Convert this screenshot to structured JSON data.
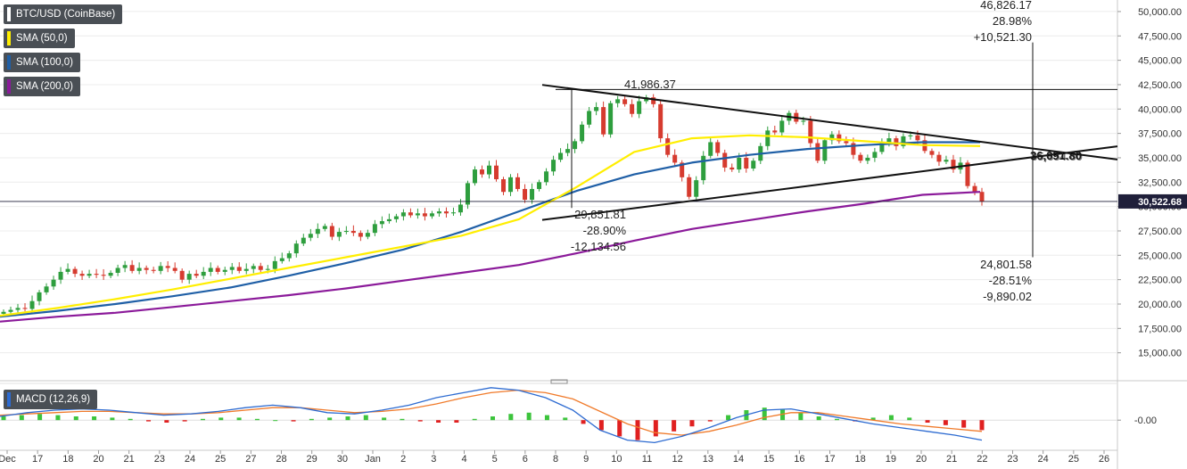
{
  "legend": {
    "instrument": "BTC/USD (CoinBase)",
    "sma50": "SMA (50,0)",
    "sma100": "SMA (100,0)",
    "sma200": "SMA (200,0)",
    "macd": "MACD (12,26,9)"
  },
  "colors": {
    "sma50": "#ffee00",
    "sma100": "#1f5fa6",
    "sma200": "#8b1a9a",
    "up": "#2e9e3e",
    "down": "#d63b2f",
    "macd_line": "#2d6bd1",
    "signal_line": "#f07a2a",
    "hist_up": "#3cc43c",
    "hist_down": "#e02020",
    "price_box": "#1f1f3a",
    "legend_bg": "#4a4f55"
  },
  "annotations": {
    "peak_label": "41,986.37",
    "low_label": [
      "29,851.81",
      "-28.90%",
      "-12,134.56"
    ],
    "upper_range": [
      "46,826.17",
      "28.98%",
      "+10,521.30"
    ],
    "lower_range": [
      "24,801.58",
      "-28.51%",
      "-9,890.02"
    ],
    "apex_label": "36,091.80",
    "apex_label_overlap": "35,654.80"
  },
  "chart_data": {
    "type": "candlestick",
    "title": "BTC/USD (CoinBase)",
    "xlabel": "",
    "ylabel": "",
    "ylim": [
      12500,
      51000
    ],
    "y_ticks": [
      "50,000.00",
      "47,500.00",
      "45,000.00",
      "42,500.00",
      "40,000.00",
      "37,500.00",
      "35,000.00",
      "32,500.00",
      "30,000.00",
      "27,500.00",
      "25,000.00",
      "22,500.00",
      "20,000.00",
      "17,500.00",
      "15,000.00"
    ],
    "x_ticks": [
      "Dec",
      "17",
      "18",
      "20",
      "21",
      "23",
      "24",
      "25",
      "27",
      "28",
      "29",
      "30",
      "Jan",
      "2",
      "3",
      "4",
      "5",
      "6",
      "8",
      "9",
      "10",
      "11",
      "12",
      "13",
      "14",
      "15",
      "16",
      "17",
      "18",
      "19",
      "20",
      "21",
      "22",
      "23",
      "24",
      "25",
      "26"
    ],
    "last_price": "30,522.68",
    "candles_close_path": [
      19200,
      19400,
      19600,
      19500,
      20300,
      21200,
      21800,
      22500,
      23300,
      23600,
      23100,
      22900,
      23100,
      23000,
      22900,
      23200,
      23700,
      24000,
      23400,
      23700,
      23500,
      23400,
      23900,
      23700,
      23400,
      22500,
      23100,
      22900,
      23300,
      23700,
      23300,
      23500,
      23800,
      23400,
      23600,
      23900,
      23500,
      23600,
      24400,
      24700,
      25200,
      26200,
      26800,
      27200,
      27700,
      28000,
      26900,
      27400,
      27500,
      27300,
      26900,
      27300,
      28200,
      28500,
      28700,
      29000,
      29400,
      29100,
      29300,
      29000,
      29300,
      29500,
      29300,
      29400,
      30200,
      32400,
      33800,
      33300,
      34200,
      32800,
      31500,
      33000,
      31800,
      30700,
      31800,
      32500,
      33600,
      34800,
      35500,
      35900,
      36700,
      38400,
      39800,
      40200,
      37400,
      40600,
      41000,
      40500,
      39500,
      40800,
      41200,
      40500,
      37000,
      35300,
      34500,
      33000,
      31000,
      32700,
      35200,
      36600,
      35500,
      34000,
      33800,
      35000,
      33900,
      34700,
      36200,
      37800,
      37600,
      38800,
      39600,
      38700,
      38800,
      36500,
      34700,
      36800,
      37400,
      36700,
      36500,
      35300,
      34700,
      35000,
      35600,
      36500,
      37000,
      36200,
      37200,
      37300,
      36800,
      35700,
      35300,
      34600,
      34800,
      33800,
      34500,
      32100,
      31500,
      30523
    ],
    "sma50": [
      18800,
      19600,
      20500,
      21500,
      22600,
      23700,
      24800,
      25900,
      27000,
      28700,
      32000,
      35600,
      37000,
      37300,
      37100,
      36700,
      36300,
      36200
    ],
    "sma100": [
      18700,
      19300,
      20000,
      20800,
      21700,
      22900,
      24200,
      25600,
      27400,
      29500,
      31600,
      33300,
      34500,
      35300,
      35900,
      36300,
      36600,
      36600
    ],
    "sma200": [
      18200,
      18700,
      19100,
      19700,
      20300,
      20900,
      21600,
      22400,
      23200,
      24000,
      25200,
      26500,
      27700,
      28600,
      29500,
      30300,
      31200,
      31500
    ],
    "trendlines": [
      {
        "name": "upper",
        "from": [
          "Jan 8",
          42300
        ],
        "to": [
          "Jan 26",
          35000
        ]
      },
      {
        "name": "lower",
        "from": [
          "Jan 8",
          28800
        ],
        "to": [
          "Jan 26",
          36000
        ]
      },
      {
        "name": "peak-horizontal",
        "from": [
          "Jan 8",
          42000
        ],
        "to": [
          "Jan 26",
          42000
        ]
      }
    ],
    "macd": {
      "label": "MACD (12,26,9)",
      "zero_label": "-0.00",
      "histogram": [
        0.3,
        0.4,
        0.5,
        0.4,
        0.3,
        0.3,
        0.2,
        0.1,
        -0.1,
        -0.2,
        -0.1,
        0.1,
        0.2,
        0.2,
        0.1,
        0.0,
        -0.1,
        0.1,
        0.2,
        0.3,
        0.4,
        0.2,
        0.1,
        -0.1,
        -0.2,
        -0.2,
        0.1,
        0.3,
        0.5,
        0.6,
        0.4,
        0.2,
        -0.3,
        -0.8,
        -1.3,
        -1.6,
        -1.3,
        -0.9,
        -0.5,
        -0.1,
        0.4,
        0.8,
        1.0,
        0.9,
        0.6,
        0.3,
        0.1,
        -0.1,
        0.2,
        0.4,
        0.2,
        -0.2,
        -0.4,
        -0.6,
        -0.8
      ],
      "macd_line": [
        0.3,
        0.6,
        0.8,
        0.9,
        0.8,
        0.6,
        0.4,
        0.5,
        0.7,
        1.0,
        1.2,
        1.0,
        0.6,
        0.5,
        0.8,
        1.2,
        1.8,
        2.2,
        2.6,
        2.4,
        1.8,
        0.8,
        -0.8,
        -1.6,
        -1.8,
        -1.3,
        -0.6,
        0.2,
        0.8,
        0.9,
        0.5,
        0.1,
        -0.3,
        -0.6,
        -0.9,
        -1.2,
        -1.6
      ],
      "signal_line": [
        0.4,
        0.5,
        0.6,
        0.7,
        0.7,
        0.6,
        0.5,
        0.5,
        0.6,
        0.8,
        1.0,
        1.0,
        0.8,
        0.6,
        0.7,
        0.9,
        1.3,
        1.8,
        2.2,
        2.4,
        2.2,
        1.7,
        0.7,
        -0.3,
        -1.0,
        -1.2,
        -0.9,
        -0.4,
        0.2,
        0.6,
        0.6,
        0.3,
        0.0,
        -0.3,
        -0.5,
        -0.7,
        -0.9
      ]
    }
  }
}
